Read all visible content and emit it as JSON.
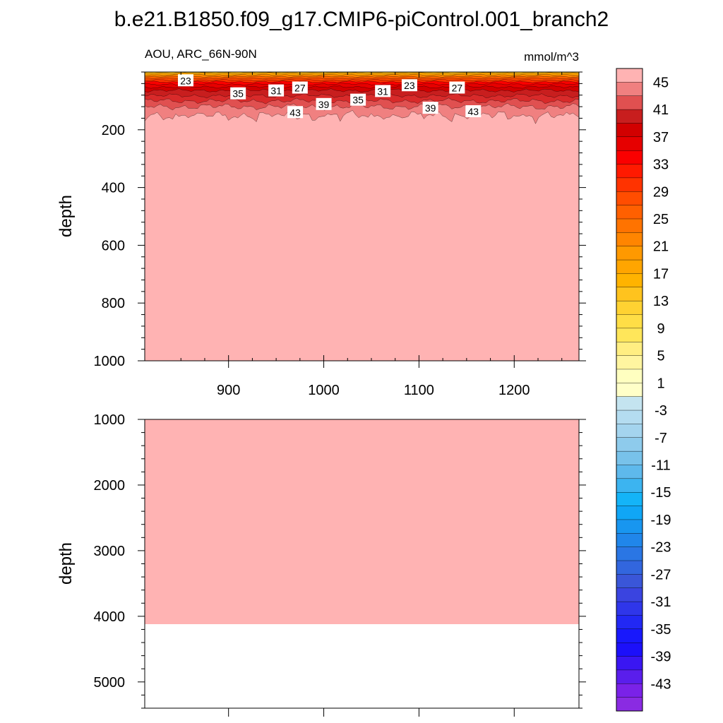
{
  "title": "b.e21.B1850.f09_g17.CMIP6-piControl.001_branch2",
  "left_string": "AOU, ARC_66N-90N",
  "right_string": "mmol/m^3",
  "chart_data": [
    {
      "type": "contour",
      "panel": "upper",
      "ylabel": "depth",
      "xlabel": "",
      "xlim": [
        812,
        1268
      ],
      "ylim": [
        1000,
        0
      ],
      "xticks": [
        900,
        1000,
        1100,
        1200
      ],
      "yticks": [
        200,
        400,
        600,
        800,
        1000
      ],
      "fill_value_below_200m": 45,
      "contour_labels": [
        {
          "text": "23",
          "x": 855,
          "y": 30
        },
        {
          "text": "35",
          "x": 910,
          "y": 75
        },
        {
          "text": "31",
          "x": 950,
          "y": 65
        },
        {
          "text": "27",
          "x": 975,
          "y": 55
        },
        {
          "text": "43",
          "x": 970,
          "y": 140
        },
        {
          "text": "39",
          "x": 1000,
          "y": 112
        },
        {
          "text": "35",
          "x": 1036,
          "y": 97
        },
        {
          "text": "31",
          "x": 1062,
          "y": 67
        },
        {
          "text": "23",
          "x": 1090,
          "y": 47
        },
        {
          "text": "39",
          "x": 1112,
          "y": 125
        },
        {
          "text": "27",
          "x": 1140,
          "y": 55
        },
        {
          "text": "43",
          "x": 1157,
          "y": 137
        }
      ]
    },
    {
      "type": "contour",
      "panel": "lower",
      "ylabel": "depth",
      "xlim": [
        812,
        1268
      ],
      "ylim": [
        5400,
        1000
      ],
      "yticks": [
        1000,
        2000,
        3000,
        4000,
        5000
      ],
      "fill_value": 45,
      "ocean_bottom_depth": 4120
    }
  ],
  "colorbar": {
    "labels": [
      "45",
      "41",
      "37",
      "33",
      "29",
      "25",
      "21",
      "17",
      "13",
      "9",
      "5",
      "1",
      "-3",
      "-7",
      "-11",
      "-15",
      "-19",
      "-23",
      "-27",
      "-31",
      "-35",
      "-39",
      "-43"
    ],
    "colors": [
      "#FFB3B3",
      "#F08080",
      "#E05050",
      "#C81E1E",
      "#D20000",
      "#E60000",
      "#FA0000",
      "#FF1A00",
      "#FF3300",
      "#FF4D00",
      "#FF6000",
      "#FF7300",
      "#FF8500",
      "#FF9900",
      "#FFA500",
      "#FFB300",
      "#FFC31E",
      "#FFD232",
      "#FFDE46",
      "#FFE65A",
      "#FFEE82",
      "#FFF5A0",
      "#FFFFC0",
      "#FFFFC8",
      "#C4E4F0",
      "#B4DCF0",
      "#A4D4EE",
      "#8ECBEC",
      "#78C2EA",
      "#5EB9EC",
      "#3CB4F0",
      "#14B4F8",
      "#10A6F6",
      "#1896F0",
      "#2086EA",
      "#2A76E4",
      "#3266DE",
      "#3A56D8",
      "#3A44E0",
      "#2F36EA",
      "#2228F4",
      "#1818FC",
      "#1C10FA",
      "#3A16F2",
      "#5A1EEC",
      "#7A22E8",
      "#8A2BE2"
    ]
  },
  "colors": {
    "fill_deep": "#FFB3B3"
  }
}
